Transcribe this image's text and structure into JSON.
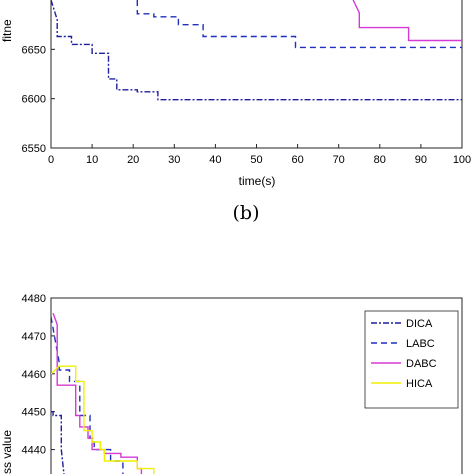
{
  "caption": "(b)",
  "chart_data": [
    {
      "type": "line",
      "xlabel": "time(s)",
      "ylabel": "fitne",
      "xlim": [
        0,
        100
      ],
      "ylim": [
        6550,
        6700
      ],
      "xticks": [
        "0",
        "10",
        "20",
        "30",
        "40",
        "50",
        "60",
        "70",
        "80",
        "90",
        "100"
      ],
      "yticks": [
        "6550",
        "6600",
        "6650"
      ],
      "series": [
        {
          "name": "DICA",
          "color": "#1f1f9e",
          "dash": "6 2 2 2",
          "x": [
            0,
            1.5,
            1.5,
            5,
            5,
            10,
            10,
            14,
            14,
            16,
            16,
            21,
            21,
            26,
            26,
            100
          ],
          "y": [
            6700,
            6680,
            6663,
            6663,
            6655,
            6655,
            6646,
            6646,
            6620,
            6620,
            6609,
            6609,
            6607,
            6607,
            6599,
            6599
          ]
        },
        {
          "name": "LABC",
          "color": "#1f2fbf",
          "dash": "6 4",
          "x": [
            21,
            21,
            25,
            25,
            31,
            31,
            37,
            37,
            59.5,
            59.5,
            100
          ],
          "y": [
            6700,
            6686,
            6686,
            6683,
            6683,
            6675,
            6675,
            6663,
            6663,
            6652,
            6652
          ]
        },
        {
          "name": "DABC",
          "color": "#d53ad5",
          "dash": "",
          "x": [
            73.5,
            75,
            75,
            87,
            87,
            100
          ],
          "y": [
            6700,
            6687,
            6672,
            6672,
            6659,
            6659
          ]
        }
      ]
    },
    {
      "type": "line",
      "ylabel": "ss value",
      "xlim": [
        0,
        100
      ],
      "ylim": [
        4430,
        4480
      ],
      "yticks": [
        "4480",
        "4470",
        "4460",
        "4450",
        "4440"
      ],
      "legend": "top-right",
      "series": [
        {
          "name": "DICA",
          "color": "#1f1f9e",
          "dash": "6 2 2 2",
          "x": [
            0,
            0.5,
            0.5,
            2.5,
            2.5,
            3.5
          ],
          "y": [
            4450,
            4450,
            4449,
            4449,
            4440,
            4430
          ]
        },
        {
          "name": "LABC",
          "color": "#1f2fbf",
          "dash": "6 4",
          "x": [
            0,
            2,
            2,
            4.5,
            4.5,
            7,
            7,
            9.5,
            9.5,
            10.5,
            10.5,
            14.5,
            14.5,
            17.5,
            17.5,
            19
          ],
          "y": [
            4475,
            4463,
            4461,
            4461,
            4458,
            4458,
            4449,
            4449,
            4443,
            4443,
            4440,
            4440,
            4437,
            4437,
            4433,
            4430
          ]
        },
        {
          "name": "DABC",
          "color": "#d53ad5",
          "dash": "",
          "x": [
            0.5,
            1.5,
            1.5,
            6,
            6,
            7,
            7,
            9,
            9,
            10,
            10,
            13,
            13,
            17,
            17,
            21,
            21,
            22,
            22
          ],
          "y": [
            4476,
            4473,
            4457,
            4457,
            4449,
            4449,
            4446,
            4446,
            4443,
            4443,
            4440,
            4440,
            4439,
            4439,
            4438,
            4438,
            4435,
            4435,
            4430
          ]
        },
        {
          "name": "HICA",
          "color": "#f0f000",
          "dash": "",
          "x": [
            0,
            2,
            2,
            6,
            6,
            8,
            8,
            10,
            10,
            12,
            12,
            13,
            13,
            21,
            21,
            25,
            25,
            41,
            41,
            43
          ],
          "y": [
            4460,
            4462,
            4462,
            4462,
            4458,
            4458,
            4445,
            4445,
            4442,
            4442,
            4440,
            4440,
            4437,
            4437,
            4435,
            4435,
            4433,
            4433,
            4432,
            4430
          ]
        }
      ]
    }
  ]
}
